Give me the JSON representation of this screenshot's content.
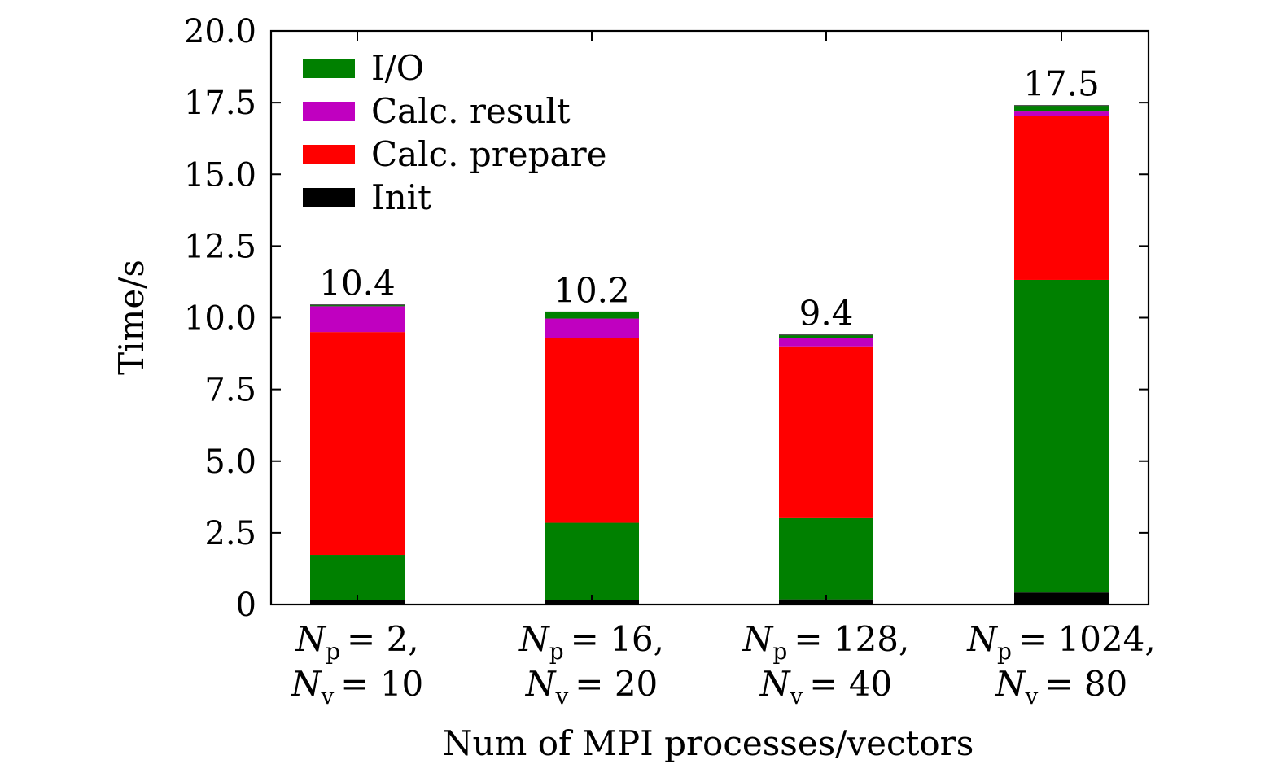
{
  "chart_data": {
    "type": "bar",
    "stacked": true,
    "title": "",
    "xlabel": "Num of MPI processes/vectors",
    "ylabel": "Time/s",
    "ylim": [
      0,
      20
    ],
    "yticks": [
      0,
      2.5,
      5.0,
      7.5,
      10.0,
      12.5,
      15.0,
      17.5,
      20.0
    ],
    "ytick_labels": [
      "0",
      "2.5",
      "5.0",
      "7.5",
      "10.0",
      "12.5",
      "15.0",
      "17.5",
      "20.0"
    ],
    "categories": [
      {
        "np_symbol": "N",
        "np_sub": "p",
        "np_value": "= 2,",
        "nv_symbol": "N",
        "nv_sub": "v",
        "nv_value": "= 10"
      },
      {
        "np_symbol": "N",
        "np_sub": "p",
        "np_value": "= 16,",
        "nv_symbol": "N",
        "nv_sub": "v",
        "nv_value": "= 20"
      },
      {
        "np_symbol": "N",
        "np_sub": "p",
        "np_value": "= 128,",
        "nv_symbol": "N",
        "nv_sub": "v",
        "nv_value": "= 40"
      },
      {
        "np_symbol": "N",
        "np_sub": "p",
        "np_value": "= 1024,",
        "nv_symbol": "N",
        "nv_sub": "v",
        "nv_value": "= 80"
      }
    ],
    "stack_layers": [
      {
        "name": "Init",
        "color": "#000000",
        "values": [
          0.15,
          0.15,
          0.18,
          0.42
        ]
      },
      {
        "name": "I/O",
        "color": "#008000",
        "values": [
          1.58,
          0.9,
          2.83,
          10.9
        ]
      },
      {
        "name": "I/O",
        "color": "#008000",
        "values": [
          0,
          1.8,
          0,
          0
        ]
      },
      {
        "name": "Calc. prepare",
        "color": "#ff0000",
        "values": [
          7.77,
          6.45,
          5.99,
          5.72
        ]
      },
      {
        "name": "Calc. result",
        "color": "#c000c0",
        "values": [
          0.9,
          0.67,
          0.3,
          0.15
        ]
      },
      {
        "name": "I/O",
        "color": "#008000",
        "values": [
          0.05,
          0.23,
          0.1,
          0.21
        ]
      }
    ],
    "totals": [
      "10.4",
      "10.2",
      "9.4",
      "17.5"
    ],
    "legend": {
      "position": "top-left",
      "entries": [
        {
          "label": "I/O",
          "color": "#008000"
        },
        {
          "label": "Calc. result",
          "color": "#c000c0"
        },
        {
          "label": "Calc. prepare",
          "color": "#ff0000"
        },
        {
          "label": "Init",
          "color": "#000000"
        }
      ]
    }
  }
}
